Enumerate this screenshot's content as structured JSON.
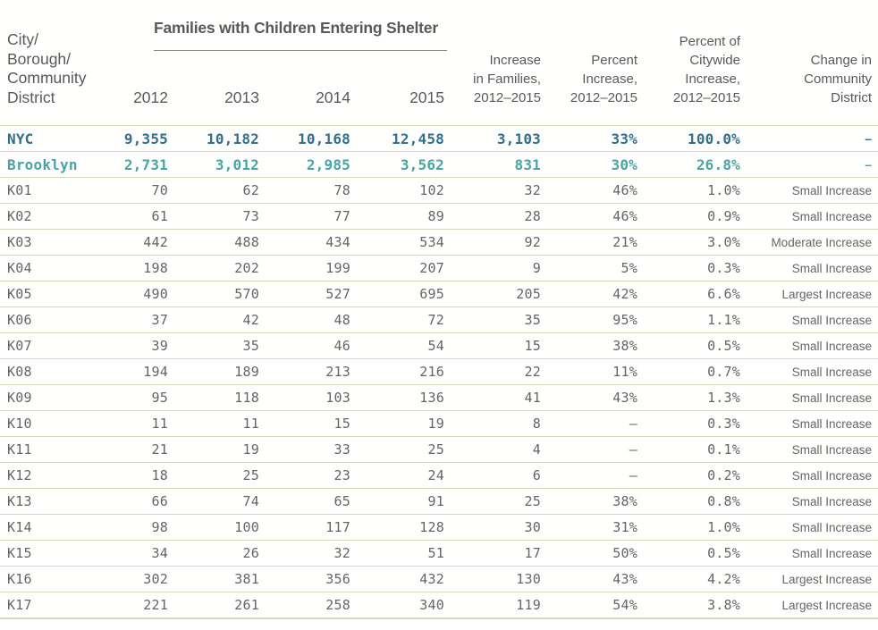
{
  "header": {
    "row_label": "City/\nBorough/\nCommunity\nDistrict",
    "group_title": "Families with Children Entering Shelter",
    "years": [
      "2012",
      "2013",
      "2014",
      "2015"
    ],
    "cols": [
      "Increase\nin Families,\n2012–2015",
      "Percent\nIncrease,\n2012–2015",
      "Percent of\nCitywide\nIncrease,\n2012–2015",
      "Change in\nCommunity\nDistrict"
    ]
  },
  "colors": {
    "nyc_row": "#336f8d",
    "brooklyn_row": "#4aa3a4",
    "row_border": "#d9d4ba",
    "body_text": "#646567",
    "header_text": "#58595b"
  },
  "chart_data": {
    "type": "table",
    "title": "Families with Children Entering Shelter",
    "row_header": "City/Borough/Community District",
    "columns": [
      "2012",
      "2013",
      "2014",
      "2015",
      "Increase in Families, 2012–2015",
      "Percent Increase, 2012–2015",
      "Percent of Citywide Increase, 2012–2015",
      "Change in Community District"
    ],
    "rows": [
      {
        "label": "NYC",
        "emphasis": "nyc",
        "values": [
          "9,355",
          "10,182",
          "10,168",
          "12,458",
          "3,103",
          "33%",
          "100.0%",
          "–"
        ]
      },
      {
        "label": "Brooklyn",
        "emphasis": "brooklyn",
        "values": [
          "2,731",
          "3,012",
          "2,985",
          "3,562",
          "831",
          "30%",
          "26.8%",
          "–"
        ]
      },
      {
        "label": "K01",
        "values": [
          "70",
          "62",
          "78",
          "102",
          "32",
          "46%",
          "1.0%",
          "Small Increase"
        ]
      },
      {
        "label": "K02",
        "values": [
          "61",
          "73",
          "77",
          "89",
          "28",
          "46%",
          "0.9%",
          "Small Increase"
        ]
      },
      {
        "label": "K03",
        "values": [
          "442",
          "488",
          "434",
          "534",
          "92",
          "21%",
          "3.0%",
          "Moderate Increase"
        ]
      },
      {
        "label": "K04",
        "values": [
          "198",
          "202",
          "199",
          "207",
          "9",
          "5%",
          "0.3%",
          "Small Increase"
        ]
      },
      {
        "label": "K05",
        "values": [
          "490",
          "570",
          "527",
          "695",
          "205",
          "42%",
          "6.6%",
          "Largest Increase"
        ]
      },
      {
        "label": "K06",
        "values": [
          "37",
          "42",
          "48",
          "72",
          "35",
          "95%",
          "1.1%",
          "Small Increase"
        ]
      },
      {
        "label": "K07",
        "values": [
          "39",
          "35",
          "46",
          "54",
          "15",
          "38%",
          "0.5%",
          "Small Increase"
        ]
      },
      {
        "label": "K08",
        "values": [
          "194",
          "189",
          "213",
          "216",
          "22",
          "11%",
          "0.7%",
          "Small Increase"
        ]
      },
      {
        "label": "K09",
        "values": [
          "95",
          "118",
          "103",
          "136",
          "41",
          "43%",
          "1.3%",
          "Small Increase"
        ]
      },
      {
        "label": "K10",
        "values": [
          "11",
          "11",
          "15",
          "19",
          "8",
          "–",
          "0.3%",
          "Small Increase"
        ]
      },
      {
        "label": "K11",
        "values": [
          "21",
          "19",
          "33",
          "25",
          "4",
          "–",
          "0.1%",
          "Small Increase"
        ]
      },
      {
        "label": "K12",
        "values": [
          "18",
          "25",
          "23",
          "24",
          "6",
          "–",
          "0.2%",
          "Small Increase"
        ]
      },
      {
        "label": "K13",
        "values": [
          "66",
          "74",
          "65",
          "91",
          "25",
          "38%",
          "0.8%",
          "Small Increase"
        ]
      },
      {
        "label": "K14",
        "values": [
          "98",
          "100",
          "117",
          "128",
          "30",
          "31%",
          "1.0%",
          "Small Increase"
        ]
      },
      {
        "label": "K15",
        "values": [
          "34",
          "26",
          "32",
          "51",
          "17",
          "50%",
          "0.5%",
          "Small Increase"
        ]
      },
      {
        "label": "K16",
        "values": [
          "302",
          "381",
          "356",
          "432",
          "130",
          "43%",
          "4.2%",
          "Largest Increase"
        ]
      },
      {
        "label": "K17",
        "values": [
          "221",
          "261",
          "258",
          "340",
          "119",
          "54%",
          "3.8%",
          "Largest Increase"
        ]
      }
    ]
  }
}
